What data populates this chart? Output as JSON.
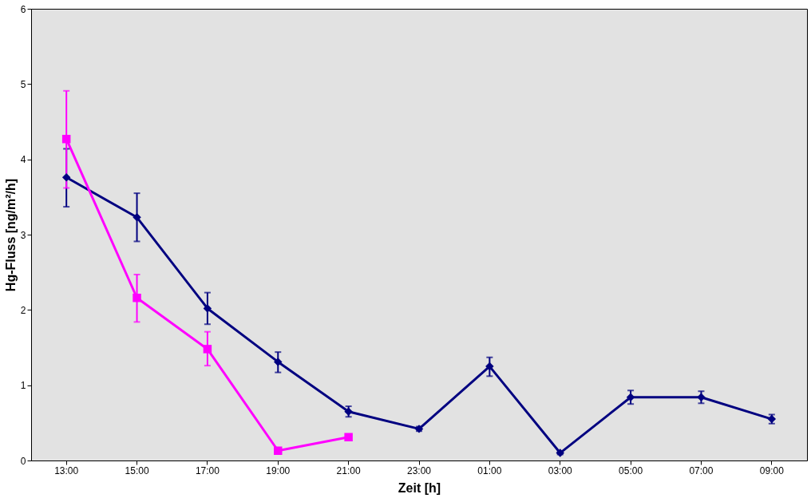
{
  "chart_data": {
    "type": "line",
    "xlabel": "Zeit [h]",
    "ylabel": "Hg-Fluss [ng/m²/h]",
    "categories": [
      "13:00",
      "15:00",
      "17:00",
      "19:00",
      "21:00",
      "23:00",
      "01:00",
      "03:00",
      "05:00",
      "07:00",
      "09:00"
    ],
    "ylim": [
      0,
      6
    ],
    "yticks": [
      0,
      1,
      2,
      3,
      4,
      5,
      6
    ],
    "grid": false,
    "line_style": "solid",
    "series": [
      {
        "color": "#000080",
        "marker": "diamond",
        "values": [
          3.76,
          3.23,
          2.02,
          1.31,
          0.65,
          0.42,
          1.25,
          0.1,
          0.84,
          0.84,
          0.55
        ],
        "errors": [
          [
            3.37,
            4.14
          ],
          [
            2.91,
            3.55
          ],
          [
            1.81,
            2.23
          ],
          [
            1.17,
            1.44
          ],
          [
            0.58,
            0.72
          ],
          [
            0.39,
            0.45
          ],
          [
            1.12,
            1.37
          ],
          [
            0.08,
            0.12
          ],
          [
            0.75,
            0.93
          ],
          [
            0.76,
            0.92
          ],
          [
            0.49,
            0.61
          ]
        ]
      },
      {
        "color": "#ff00ff",
        "marker": "square",
        "values": [
          4.27,
          2.16,
          1.48,
          0.13,
          0.31,
          null,
          null,
          null,
          null,
          null,
          null
        ],
        "errors": [
          [
            3.62,
            4.91
          ],
          [
            1.84,
            2.47
          ],
          [
            1.26,
            1.71
          ],
          null,
          null,
          null,
          null,
          null,
          null,
          null,
          null
        ]
      }
    ]
  }
}
